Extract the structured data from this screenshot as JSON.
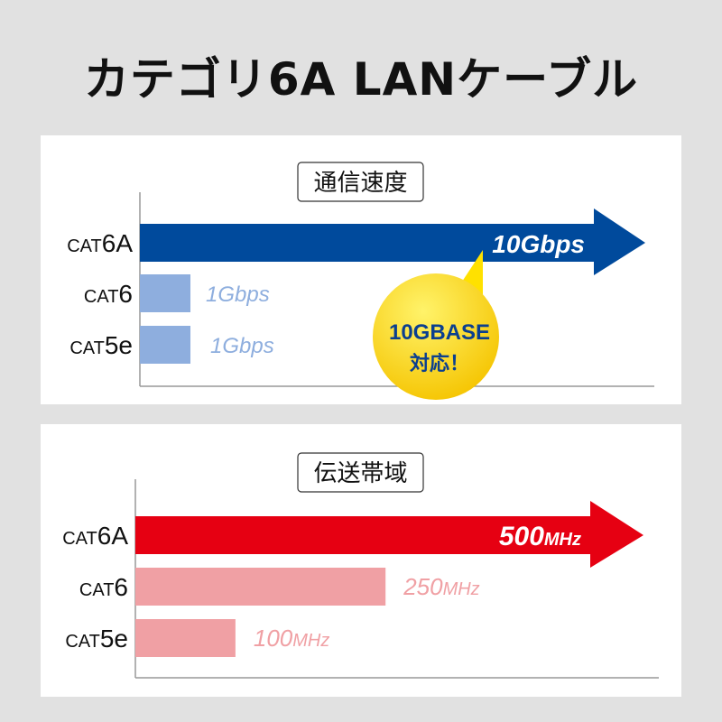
{
  "title": "カテゴリ6A LANケーブル",
  "chart_data": [
    {
      "type": "bar",
      "orientation": "horizontal",
      "title": "通信速度",
      "categories": [
        "CAT6A",
        "CAT6",
        "CAT5e"
      ],
      "values": [
        10,
        1,
        1
      ],
      "unit": "Gbps",
      "value_labels": [
        "10Gbps",
        "1Gbps",
        "1Gbps"
      ],
      "colors": [
        "#004a9c",
        "#8eaede",
        "#8eaede"
      ],
      "label_colors": [
        "#ffffff",
        "#8eaede",
        "#8eaede"
      ],
      "callout": {
        "line1": "10GBASE",
        "line2": "対応！",
        "color": "#ffe100",
        "text_color": "#0b3f8f"
      },
      "grid": false
    },
    {
      "type": "bar",
      "orientation": "horizontal",
      "title": "伝送帯域",
      "categories": [
        "CAT6A",
        "CAT6",
        "CAT5e"
      ],
      "values": [
        500,
        250,
        100
      ],
      "unit": "MHz",
      "value_labels": [
        "500MHz",
        "250MHz",
        "100MHz"
      ],
      "colors": [
        "#e60012",
        "#f0a0a4",
        "#f0a0a4"
      ],
      "label_colors": [
        "#ffffff",
        "#f0a0a4",
        "#f0a0a4"
      ],
      "grid": false
    }
  ]
}
